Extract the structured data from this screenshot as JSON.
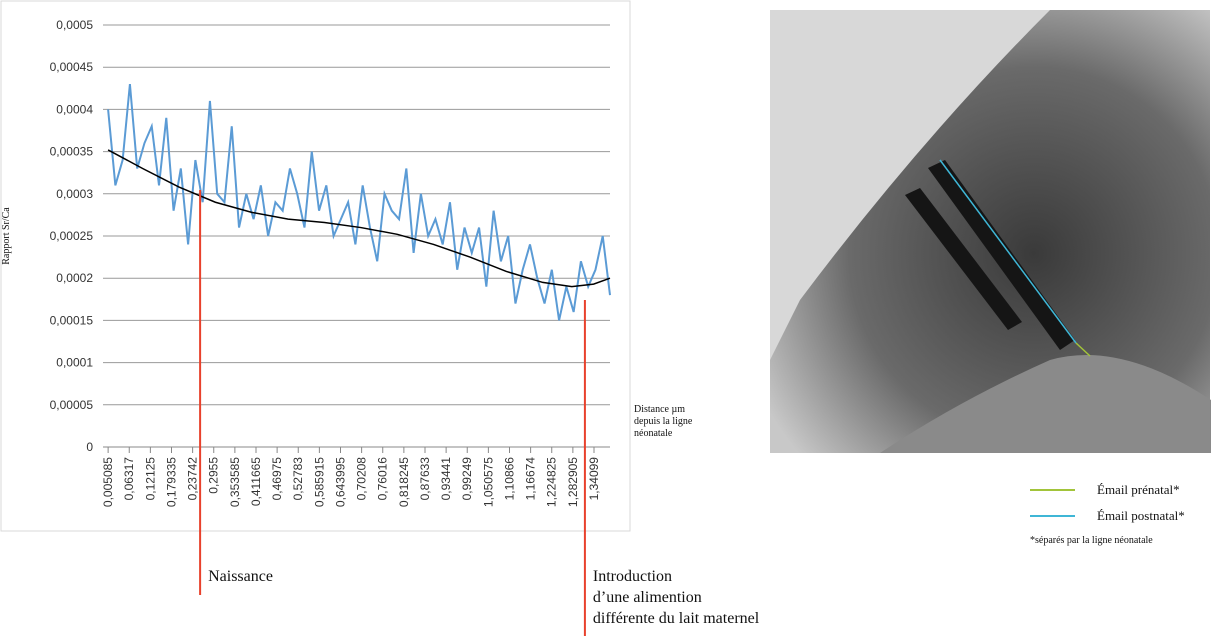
{
  "chart_data": {
    "type": "line",
    "y_label": "Rapport Sr/Ca",
    "x_label": [
      "Distance µm",
      "depuis la ligne",
      "néonatale"
    ],
    "xlim": [
      -0.009,
      1.385
    ],
    "ylim": [
      0,
      0.0005
    ],
    "grid": true,
    "yticks": [
      0,
      {
        "value": 5e-05,
        "label": "0,00005"
      },
      {
        "value": 0.0001,
        "label": "0,0001"
      },
      {
        "value": 0.00015,
        "label": "0,00015"
      },
      {
        "value": 0.0002,
        "label": "0,0002"
      },
      {
        "value": 0.00025,
        "label": "0,00025"
      },
      {
        "value": 0.0003,
        "label": "0,0003"
      },
      {
        "value": 0.00035,
        "label": "0,00035"
      },
      {
        "value": 0.0004,
        "label": "0,0004"
      },
      {
        "value": 0.00045,
        "label": "0,00045"
      },
      {
        "value": 0.0005,
        "label": "0,0005"
      }
    ],
    "xticks": [
      {
        "value": 0.005085,
        "label": "0,005085"
      },
      {
        "value": 0.06317,
        "label": "0,06317"
      },
      {
        "value": 0.12125,
        "label": "0,12125"
      },
      {
        "value": 0.179335,
        "label": "0,179335"
      },
      {
        "value": 0.23742,
        "label": "0,23742"
      },
      {
        "value": 0.2955,
        "label": "0,2955"
      },
      {
        "value": 0.353585,
        "label": "0,353585"
      },
      {
        "value": 0.411665,
        "label": "0,411665"
      },
      {
        "value": 0.46975,
        "label": "0,46975"
      },
      {
        "value": 0.52783,
        "label": "0,52783"
      },
      {
        "value": 0.585915,
        "label": "0,585915"
      },
      {
        "value": 0.643995,
        "label": "0,643995"
      },
      {
        "value": 0.70208,
        "label": "0,70208"
      },
      {
        "value": 0.76016,
        "label": "0,76016"
      },
      {
        "value": 0.818245,
        "label": "0,818245"
      },
      {
        "value": 0.87633,
        "label": "0,87633"
      },
      {
        "value": 0.93441,
        "label": "0,93441"
      },
      {
        "value": 0.99249,
        "label": "0,99249"
      },
      {
        "value": 1.050575,
        "label": "1,050575"
      },
      {
        "value": 1.10866,
        "label": "1,10866"
      },
      {
        "value": 1.16674,
        "label": "1,16674"
      },
      {
        "value": 1.224825,
        "label": "1,224825"
      },
      {
        "value": 1.282905,
        "label": "1,282905"
      },
      {
        "value": 1.34099,
        "label": "1,34099"
      }
    ],
    "series": [
      {
        "color": "#5b9bd5",
        "x": [
          0.005,
          0.025,
          0.045,
          0.065,
          0.085,
          0.105,
          0.125,
          0.145,
          0.165,
          0.185,
          0.205,
          0.225,
          0.245,
          0.265,
          0.285,
          0.305,
          0.325,
          0.345,
          0.365,
          0.385,
          0.405,
          0.425,
          0.445,
          0.465,
          0.485,
          0.505,
          0.525,
          0.545,
          0.565,
          0.585,
          0.605,
          0.625,
          0.645,
          0.665,
          0.685,
          0.705,
          0.725,
          0.745,
          0.765,
          0.785,
          0.805,
          0.825,
          0.845,
          0.865,
          0.885,
          0.905,
          0.925,
          0.945,
          0.965,
          0.985,
          1.005,
          1.025,
          1.045,
          1.065,
          1.085,
          1.105,
          1.125,
          1.145,
          1.165,
          1.185,
          1.205,
          1.225,
          1.245,
          1.265,
          1.285,
          1.305,
          1.325,
          1.345,
          1.365,
          1.385
        ],
        "values": [
          0.0004,
          0.00031,
          0.00034,
          0.00043,
          0.00033,
          0.00036,
          0.00038,
          0.00031,
          0.00039,
          0.00028,
          0.00033,
          0.00024,
          0.00034,
          0.00029,
          0.00041,
          0.0003,
          0.00029,
          0.00038,
          0.00026,
          0.0003,
          0.00027,
          0.00031,
          0.00025,
          0.00029,
          0.00028,
          0.00033,
          0.0003,
          0.00026,
          0.00035,
          0.00028,
          0.00031,
          0.00025,
          0.00027,
          0.00029,
          0.00024,
          0.00031,
          0.00026,
          0.00022,
          0.0003,
          0.00028,
          0.00027,
          0.00033,
          0.00023,
          0.0003,
          0.00025,
          0.00027,
          0.00024,
          0.00029,
          0.00021,
          0.00026,
          0.00023,
          0.00026,
          0.00019,
          0.00028,
          0.00022,
          0.00025,
          0.00017,
          0.00021,
          0.00024,
          0.0002,
          0.00017,
          0.00021,
          0.00015,
          0.00019,
          0.00016,
          0.00022,
          0.00019,
          0.00021,
          0.00025,
          0.00018
        ]
      },
      {
        "color": "#000000",
        "x": [
          0.005,
          0.1,
          0.2,
          0.3,
          0.4,
          0.5,
          0.6,
          0.7,
          0.8,
          0.9,
          1.0,
          1.1,
          1.2,
          1.28,
          1.34,
          1.385
        ],
        "values": [
          0.000352,
          0.00033,
          0.000308,
          0.00029,
          0.000278,
          0.00027,
          0.000266,
          0.00026,
          0.000252,
          0.00024,
          0.000225,
          0.000208,
          0.000195,
          0.00019,
          0.000193,
          0.0002
        ]
      }
    ],
    "annotations": [
      {
        "x": 0.258,
        "text": [
          "Naissance"
        ]
      },
      {
        "x": 1.316,
        "text": [
          "Introduction",
          "d’une alimention",
          "différente du lait maternel"
        ]
      }
    ]
  },
  "legend": {
    "items": [
      {
        "label": "Émail prénatal*",
        "color": "#a2c43a"
      },
      {
        "label": "Émail postnatal*",
        "color": "#3fb6d6"
      }
    ],
    "note": "*séparés par la ligne néonatale"
  }
}
